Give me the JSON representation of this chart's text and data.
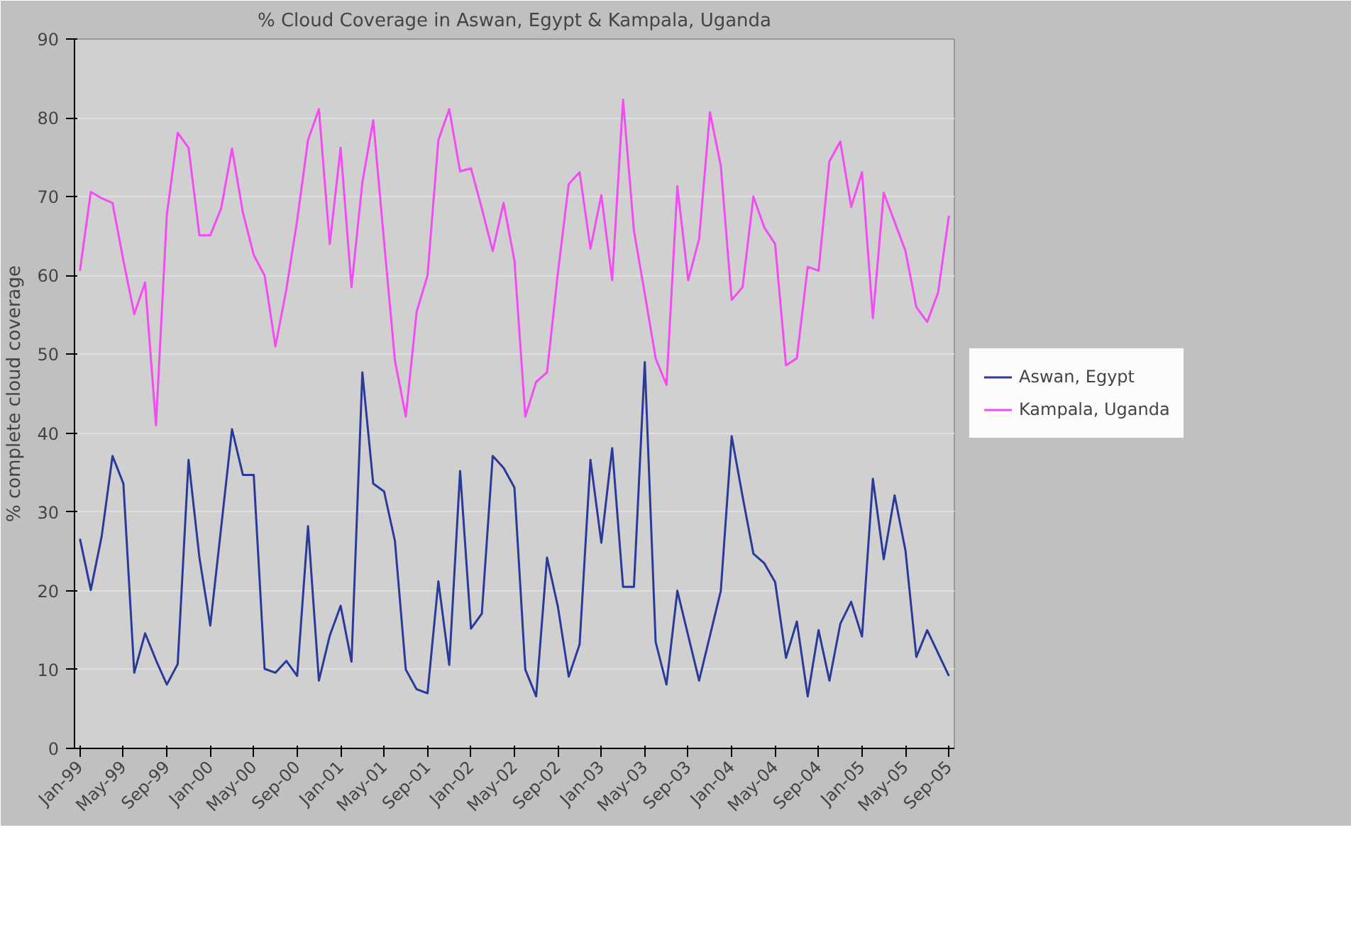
{
  "chart_data": {
    "type": "line",
    "title": "% Cloud Coverage in Aswan, Egypt & Kampala, Uganda",
    "ylabel": "% complete cloud coverage",
    "categories": [
      "Jan-99",
      null,
      null,
      null,
      "May-99",
      null,
      null,
      null,
      "Sep-99",
      null,
      null,
      null,
      "Jan-00",
      null,
      null,
      null,
      "May-00",
      null,
      null,
      null,
      "Sep-00",
      null,
      null,
      null,
      "Jan-01",
      null,
      null,
      null,
      "May-01",
      null,
      null,
      null,
      "Sep-01",
      null,
      null,
      null,
      "Jan-02",
      null,
      null,
      null,
      "May-02",
      null,
      null,
      null,
      "Sep-02",
      null,
      null,
      null,
      "Jan-03",
      null,
      null,
      null,
      "May-03",
      null,
      null,
      null,
      "Sep-03",
      null,
      null,
      null,
      "Jan-04",
      null,
      null,
      null,
      "May-04",
      null,
      null,
      null,
      "Sep-04",
      null,
      null,
      null,
      "Jan-05",
      null,
      null,
      null,
      "May-05",
      null,
      null,
      null,
      "Sep-05"
    ],
    "series": [
      {
        "name": "Aswan, Egypt",
        "color": "#2a3a98",
        "values": [
          26.6,
          20.1,
          26.9,
          37.1,
          33.6,
          9.6,
          14.6,
          11.2,
          8.1,
          10.7,
          36.6,
          24.2,
          15.6,
          28,
          40.5,
          34.7,
          34.7,
          10.1,
          9.6,
          11.1,
          9.2,
          28.2,
          8.6,
          14.3,
          18.1,
          11.0,
          47.7,
          33.6,
          32.6,
          26.3,
          10.0,
          7.5,
          7.0,
          21.2,
          10.6,
          35.2,
          15.2,
          17.1,
          37.1,
          35.6,
          33.1,
          10.0,
          6.6,
          24.2,
          18.0,
          9.1,
          13.2,
          36.6,
          26.1,
          38.1,
          20.5,
          20.5,
          49.0,
          13.5,
          8.1,
          20.0,
          14.3,
          8.6,
          14.3,
          20.0,
          39.6,
          32,
          24.7,
          23.5,
          21.1,
          11.5,
          16.1,
          6.6,
          15.0,
          8.6,
          15.8,
          18.6,
          14.2,
          34.2,
          24.0,
          32.1,
          25.1,
          11.6,
          15.0,
          12.1,
          9.2
        ]
      },
      {
        "name": "Kampala, Uganda",
        "color": "#f24cf2",
        "values": [
          60.6,
          70.6,
          69.8,
          69.2,
          61.9,
          55.1,
          59.1,
          41.0,
          67.7,
          78.1,
          76.2,
          65.1,
          65.1,
          68.5,
          76.1,
          68.0,
          62.6,
          60.0,
          51.0,
          58.2,
          67,
          77.2,
          81.1,
          64.0,
          76.2,
          58.5,
          71.8,
          79.7,
          64.3,
          49.2,
          42.1,
          55.4,
          60.0,
          77.2,
          81.1,
          73.2,
          73.6,
          68.5,
          63.1,
          69.2,
          61.9,
          42.1,
          46.5,
          47.7,
          60.3,
          71.6,
          73.1,
          63.4,
          70.2,
          59.4,
          82.3,
          65.7,
          57.7,
          49.5,
          46.1,
          71.3,
          59.4,
          64.6,
          80.7,
          73.9,
          56.9,
          58.5,
          70.0,
          66.1,
          64.0,
          48.6,
          49.5,
          61.1,
          60.6,
          74.5,
          77.0,
          68.7,
          73.1,
          54.6,
          70.5,
          66.8,
          63.1,
          56.0,
          54.1,
          57.8,
          67.6
        ]
      }
    ],
    "ylim": [
      0,
      90
    ],
    "yticks": [
      0,
      10,
      20,
      30,
      40,
      50,
      60,
      70,
      80,
      90
    ],
    "grid": "y",
    "legend": "right"
  }
}
